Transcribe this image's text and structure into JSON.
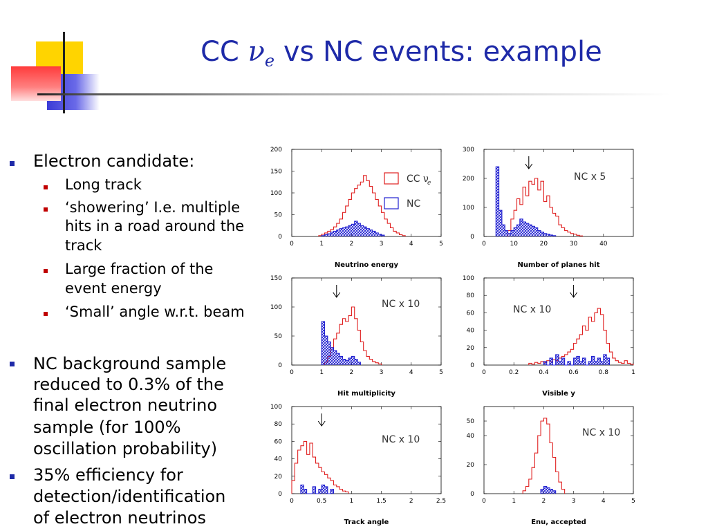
{
  "title": {
    "prefix": "CC ",
    "nu": "ν",
    "sub": "e",
    "suffix": " vs NC events: example"
  },
  "bullets": {
    "electron_candidate": "Electron candidate:",
    "sub": [
      {
        "lines": [
          "Long track"
        ]
      },
      {
        "lines": [
          "‘showering’ I.e. multiple",
          "hits in a road around the",
          "track"
        ]
      },
      {
        "lines": [
          "Large fraction of the",
          "event energy"
        ]
      },
      {
        "lines": [
          "‘Small’ angle w.r.t. beam"
        ]
      }
    ],
    "nc_background": [
      "NC background sample",
      "reduced to 0.3% of the",
      "final electron neutrino",
      "sample (for 100%",
      "oscillation probability)"
    ],
    "efficiency": [
      "35% efficiency for",
      "detection/identification",
      "of electron neutrinos"
    ]
  },
  "colors": {
    "title": "#1e2aa8",
    "cc": "#e02020",
    "nc": "#2020d0",
    "bullet_main": "#1e2aa8",
    "bullet_sub": "#c00000"
  },
  "chart_data": [
    {
      "type": "histogram",
      "title": "Neutrino energy",
      "xlim": [
        0,
        5
      ],
      "ylim": [
        0,
        200
      ],
      "xticks": [
        "0",
        "1",
        "2",
        "3",
        "4",
        "5"
      ],
      "yticks": [
        "0",
        "50",
        "100",
        "150",
        "200"
      ],
      "legend": [
        {
          "label": "CC ν",
          "sub": "e",
          "color": "#e02020"
        },
        {
          "label": "NC",
          "color": "#2020d0"
        }
      ],
      "series": [
        {
          "name": "CC νe",
          "color": "#e02020",
          "x_start": 0.9,
          "bin": 0.1,
          "values": [
            2,
            5,
            8,
            12,
            16,
            22,
            30,
            40,
            55,
            70,
            85,
            100,
            110,
            118,
            125,
            140,
            128,
            115,
            100,
            85,
            70,
            55,
            40,
            30,
            20,
            12,
            8,
            4,
            2
          ]
        },
        {
          "name": "NC",
          "color": "#2020d0",
          "hatched": true,
          "x_start": 1.0,
          "bin": 0.1,
          "values": [
            2,
            4,
            6,
            10,
            12,
            15,
            18,
            20,
            22,
            25,
            28,
            35,
            30,
            25,
            22,
            18,
            15,
            12,
            8,
            5,
            3
          ]
        }
      ]
    },
    {
      "type": "histogram",
      "title": "Number of planes hit",
      "xlim": [
        0,
        50
      ],
      "ylim": [
        0,
        300
      ],
      "xticks": [
        "0",
        "10",
        "20",
        "30",
        "40"
      ],
      "yticks": [
        "0",
        "100",
        "200",
        "300"
      ],
      "annotation": "NC x 5",
      "cut_arrow_x": 15,
      "series": [
        {
          "name": "CC νe",
          "color": "#e02020",
          "x_start": 8,
          "bin": 1,
          "values": [
            20,
            60,
            90,
            130,
            110,
            170,
            140,
            190,
            180,
            200,
            160,
            190,
            120,
            140,
            100,
            80,
            70,
            40,
            30,
            20,
            15,
            10,
            8,
            4,
            2
          ]
        },
        {
          "name": "NC",
          "color": "#2020d0",
          "hatched": true,
          "x_start": 4,
          "bin": 1,
          "values": [
            240,
            90,
            40,
            20,
            10,
            20,
            30,
            40,
            60,
            50,
            45,
            40,
            35,
            30,
            20,
            15,
            10,
            8,
            5,
            3
          ]
        }
      ]
    },
    {
      "type": "histogram",
      "title": "Hit multiplicity",
      "xlim": [
        0,
        5
      ],
      "ylim": [
        0,
        150
      ],
      "xticks": [
        "0",
        "1",
        "2",
        "3",
        "4",
        "5"
      ],
      "yticks": [
        "0",
        "50",
        "100",
        "150"
      ],
      "annotation": "NC x 10",
      "cut_arrow_x": 1.5,
      "series": [
        {
          "name": "CC νe",
          "color": "#e02020",
          "x_start": 1.1,
          "bin": 0.1,
          "values": [
            5,
            15,
            30,
            45,
            55,
            70,
            80,
            75,
            85,
            100,
            80,
            60,
            40,
            25,
            15,
            10,
            6,
            4,
            2
          ]
        },
        {
          "name": "NC",
          "color": "#2020d0",
          "hatched": true,
          "x_start": 1.0,
          "bin": 0.1,
          "values": [
            75,
            50,
            40,
            30,
            25,
            20,
            15,
            10,
            8,
            12,
            15,
            10,
            5
          ]
        }
      ]
    },
    {
      "type": "histogram",
      "title": "Visible y",
      "xlim": [
        0,
        1
      ],
      "ylim": [
        0,
        100
      ],
      "xticks": [
        "0",
        "0.2",
        "0.4",
        "0.6",
        "0.8",
        "1"
      ],
      "yticks": [
        "0",
        "20",
        "40",
        "60",
        "80",
        "100"
      ],
      "annotation": "NC x 10",
      "cut_arrow_x": 0.6,
      "series": [
        {
          "name": "CC νe",
          "color": "#e02020",
          "x_start": 0.3,
          "bin": 0.02,
          "values": [
            2,
            1,
            3,
            2,
            4,
            3,
            5,
            4,
            6,
            5,
            8,
            10,
            12,
            15,
            18,
            25,
            30,
            35,
            45,
            40,
            55,
            50,
            60,
            65,
            58,
            40,
            25,
            15,
            8,
            5,
            3,
            2,
            5,
            2,
            1
          ]
        },
        {
          "name": "NC",
          "color": "#2020d0",
          "hatched": true,
          "x_start": 0.4,
          "bin": 0.02,
          "values": [
            4,
            0,
            8,
            0,
            12,
            4,
            8,
            0,
            4,
            0,
            8,
            10,
            4,
            8,
            0,
            4,
            10,
            4,
            8,
            4,
            12,
            8
          ]
        }
      ]
    },
    {
      "type": "histogram",
      "title": "Track angle",
      "xlim": [
        0,
        2.5
      ],
      "ylim": [
        0,
        100
      ],
      "xticks": [
        "0",
        "0.5",
        "1",
        "1.5",
        "2",
        "2.5"
      ],
      "yticks": [
        "0",
        "20",
        "40",
        "60",
        "80",
        "100"
      ],
      "annotation": "NC x 10",
      "cut_arrow_x": 0.5,
      "series": [
        {
          "name": "CC νe",
          "color": "#e02020",
          "x_start": 0.0,
          "bin": 0.05,
          "values": [
            15,
            35,
            50,
            55,
            60,
            45,
            58,
            42,
            35,
            30,
            25,
            22,
            18,
            15,
            10,
            8,
            5,
            3,
            2
          ]
        },
        {
          "name": "NC",
          "color": "#2020d0",
          "hatched": true,
          "x_start": 0.15,
          "bin": 0.05,
          "values": [
            10,
            5,
            0,
            0,
            8,
            0,
            5,
            10,
            8,
            0,
            5
          ]
        }
      ]
    },
    {
      "type": "histogram",
      "title": "Enu, accepted",
      "xlim": [
        0,
        5
      ],
      "ylim": [
        0,
        60
      ],
      "xticks": [
        "0",
        "1",
        "2",
        "3",
        "4",
        "5"
      ],
      "yticks": [
        "0",
        "20",
        "40",
        "50"
      ],
      "annotation": "NC x 10",
      "series": [
        {
          "name": "CC νe",
          "color": "#e02020",
          "x_start": 1.3,
          "bin": 0.1,
          "values": [
            2,
            5,
            10,
            18,
            28,
            40,
            50,
            52,
            48,
            35,
            25,
            15,
            8,
            3
          ]
        },
        {
          "name": "NC",
          "color": "#2020d0",
          "hatched": true,
          "x_start": 1.9,
          "bin": 0.1,
          "values": [
            3,
            5,
            4,
            3,
            2
          ]
        }
      ]
    }
  ]
}
